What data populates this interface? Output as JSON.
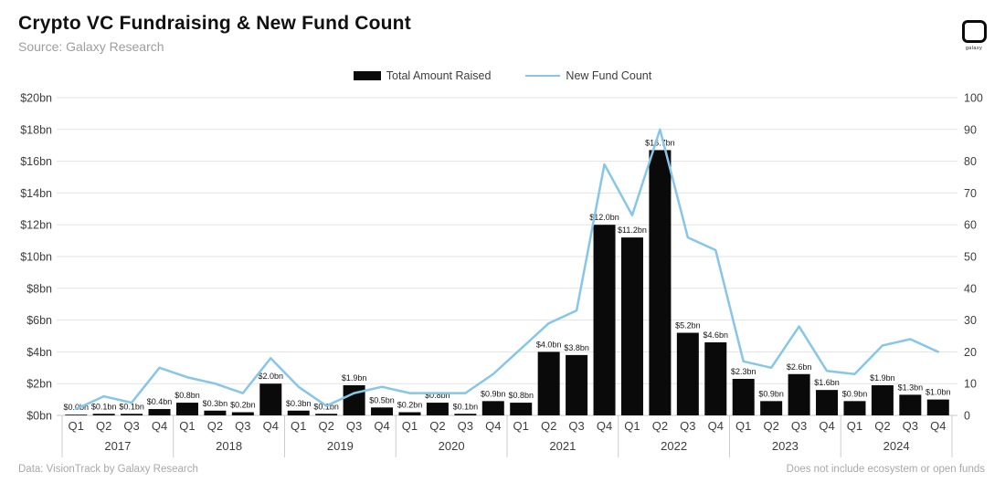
{
  "header": {
    "title": "Crypto VC Fundraising & New Fund Count",
    "subtitle": "Source: Galaxy Research",
    "logo_text": "galaxy"
  },
  "legend": {
    "items": [
      {
        "label": "Total Amount Raised",
        "marker": "bar-swatch",
        "color": "#0a0a0a"
      },
      {
        "label": "New Fund Count",
        "marker": "line-swatch",
        "color": "#85c6ea"
      }
    ]
  },
  "footer": {
    "left": "Data: VisionTrack by Galaxy Research",
    "right": "Does not include ecosystem or open funds"
  },
  "chart_data": {
    "type": "bar+line",
    "title": "Crypto VC Fundraising & New Fund Count",
    "years": [
      "2017",
      "2018",
      "2019",
      "2020",
      "2021",
      "2022",
      "2023",
      "2024"
    ],
    "quarters": [
      "Q1",
      "Q2",
      "Q3",
      "Q4"
    ],
    "series": [
      {
        "name": "Total Amount Raised",
        "type": "bar",
        "axis": "left",
        "unit": "$bn",
        "color": "#0a0a0a",
        "values": [
          0.0,
          0.1,
          0.1,
          0.4,
          0.8,
          0.3,
          0.2,
          2.0,
          0.3,
          0.1,
          1.9,
          0.5,
          0.2,
          0.8,
          0.1,
          0.9,
          0.8,
          4.0,
          3.8,
          12.0,
          11.2,
          16.7,
          5.2,
          4.6,
          2.3,
          0.9,
          2.6,
          1.6,
          0.9,
          1.9,
          1.3,
          1.0
        ],
        "labels": [
          "$0.0bn",
          "$0.1bn",
          "$0.1bn",
          "$0.4bn",
          "$0.8bn",
          "$0.3bn",
          "$0.2bn",
          "$2.0bn",
          "$0.3bn",
          "$0.1bn",
          "$1.9bn",
          "$0.5bn",
          "$0.2bn",
          "$0.8bn",
          "$0.1bn",
          "$0.9bn",
          "$0.8bn",
          "$4.0bn",
          "$3.8bn",
          "$12.0bn",
          "$11.2bn",
          "$16.7bn",
          "$5.2bn",
          "$4.6bn",
          "$2.3bn",
          "$0.9bn",
          "$2.6bn",
          "$1.6bn",
          "$0.9bn",
          "$1.9bn",
          "$1.3bn",
          "$1.0bn"
        ]
      },
      {
        "name": "New Fund Count",
        "type": "line",
        "axis": "right",
        "color": "#85c6ea",
        "values": [
          2,
          6,
          4,
          15,
          12,
          10,
          7,
          18,
          9,
          3,
          7,
          9,
          7,
          7,
          7,
          13,
          21,
          29,
          33,
          79,
          63,
          90,
          56,
          52,
          17,
          15,
          28,
          14,
          13,
          22,
          24,
          20
        ]
      }
    ],
    "left_axis": {
      "min": 0,
      "max": 20,
      "step": 2,
      "ticks": [
        "$0bn",
        "$2bn",
        "$4bn",
        "$6bn",
        "$8bn",
        "$10bn",
        "$12bn",
        "$14bn",
        "$16bn",
        "$18bn",
        "$20bn"
      ]
    },
    "right_axis": {
      "min": 0,
      "max": 100,
      "step": 10,
      "ticks": [
        "0",
        "10",
        "20",
        "30",
        "40",
        "50",
        "60",
        "70",
        "80",
        "90",
        "100"
      ]
    },
    "grid": true,
    "legend_position": "top"
  }
}
